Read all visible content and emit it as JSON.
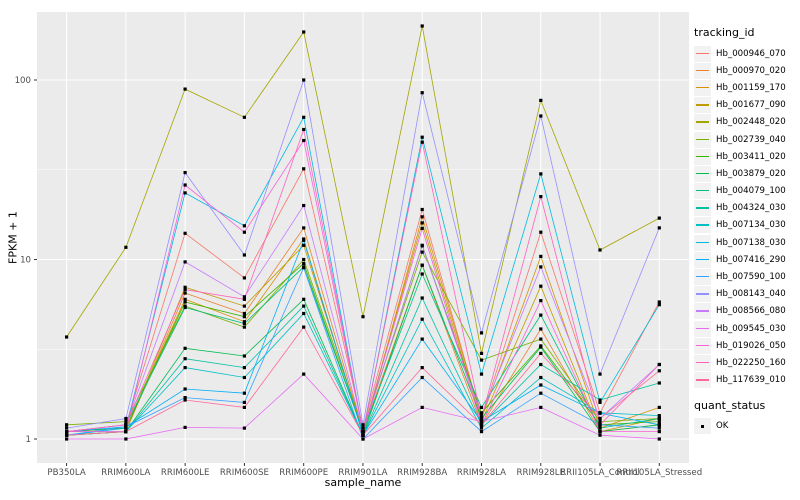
{
  "figure": {
    "background": "#FFFFFF",
    "panel_background": "#EBEBEB",
    "grid_color": "#FFFFFF",
    "axis_text_color": "#4D4D4D",
    "tick_color": "#333333",
    "marker_color": "#000000"
  },
  "axes": {
    "x_label": "sample_name",
    "y_label": "FPKM + 1",
    "y_tick_labels": [
      "1",
      "10",
      "100"
    ]
  },
  "legend": {
    "tracking_title": "tracking_id",
    "quant_title": "quant_status",
    "quant_items": [
      {
        "label": "OK",
        "marker": "black-square"
      }
    ]
  },
  "chart_data": {
    "type": "line",
    "title": "",
    "xlabel": "sample_name",
    "ylabel": "FPKM + 1",
    "log_y": true,
    "y_ticks": [
      1,
      10,
      100
    ],
    "y_minor_ticks": [
      3.162,
      31.62
    ],
    "ylim": [
      0.74,
      240
    ],
    "grid": true,
    "legend_position": "right",
    "marker": "square",
    "categories": [
      "PB350LA",
      "RRIM600LA",
      "RRIM600LE",
      "RRIM600SE",
      "RRIM600PE",
      "RRIM901LA",
      "RRIM928BA",
      "RRIM928LA",
      "RRIM928LE",
      "RRII105LA_Control",
      "RRII105LA_Stressed"
    ],
    "series": [
      {
        "name": "Hb_000946_070",
        "color": "#F8766D",
        "values": [
          1.1,
          1.2,
          14.0,
          7.9,
          32,
          1.15,
          19.0,
          1.3,
          14.2,
          1.4,
          5.8
        ]
      },
      {
        "name": "Hb_000970_020",
        "color": "#EA8331",
        "values": [
          1.05,
          1.1,
          6.5,
          5.0,
          15.0,
          1.1,
          9.3,
          1.2,
          4.1,
          1.1,
          1.2
        ]
      },
      {
        "name": "Hb_001159_170",
        "color": "#D89000",
        "values": [
          1.1,
          1.15,
          6.0,
          4.5,
          13.0,
          1.05,
          17.3,
          1.3,
          10.4,
          1.15,
          1.5
        ]
      },
      {
        "name": "Hb_001677_090",
        "color": "#C09B00",
        "values": [
          1.05,
          1.1,
          7.0,
          5.5,
          12.0,
          1.1,
          16.0,
          1.25,
          7.1,
          1.1,
          1.3
        ]
      },
      {
        "name": "Hb_002448_020",
        "color": "#A3A500",
        "values": [
          3.7,
          11.7,
          89,
          62,
          185,
          4.8,
          200,
          3.0,
          77,
          11.3,
          17.0
        ]
      },
      {
        "name": "Hb_002739_040",
        "color": "#7CAE00",
        "values": [
          1.2,
          1.25,
          5.5,
          4.2,
          10.0,
          1.15,
          11.0,
          2.75,
          3.6,
          1.25,
          1.3
        ]
      },
      {
        "name": "Hb_003411_020",
        "color": "#39B600",
        "values": [
          1.1,
          1.15,
          5.8,
          4.8,
          9.5,
          1.1,
          12.0,
          1.4,
          3.3,
          1.2,
          1.25
        ]
      },
      {
        "name": "Hb_003879_020",
        "color": "#00BB4E",
        "values": [
          1.05,
          1.1,
          3.2,
          2.9,
          6.0,
          1.05,
          9.3,
          1.3,
          3.25,
          1.1,
          1.2
        ]
      },
      {
        "name": "Hb_004079_100",
        "color": "#00BF7D",
        "values": [
          1.1,
          1.2,
          5.4,
          4.4,
          9.1,
          1.1,
          8.3,
          1.5,
          4.9,
          1.15,
          1.3
        ]
      },
      {
        "name": "Hb_004324_030",
        "color": "#00C1A3",
        "values": [
          1.05,
          1.1,
          2.8,
          2.5,
          5.5,
          1.05,
          6.1,
          1.2,
          2.6,
          1.65,
          2.05
        ]
      },
      {
        "name": "Hb_007134_030",
        "color": "#00BFC4",
        "values": [
          1.1,
          1.1,
          2.5,
          2.2,
          5.0,
          1.05,
          4.65,
          1.15,
          2.2,
          1.4,
          1.35
        ]
      },
      {
        "name": "Hb_007138_030",
        "color": "#00BAE0",
        "values": [
          1.05,
          1.15,
          23.5,
          15.4,
          62,
          1.1,
          48,
          2.3,
          30,
          1.6,
          5.6
        ]
      },
      {
        "name": "Hb_007416_290",
        "color": "#00B0F6",
        "values": [
          1.1,
          1.17,
          1.9,
          1.8,
          12.8,
          1.05,
          3.6,
          1.25,
          2.0,
          1.39,
          1.2
        ]
      },
      {
        "name": "Hb_007590_100",
        "color": "#35A2FF",
        "values": [
          1.05,
          1.17,
          1.7,
          1.6,
          9.0,
          1.0,
          2.2,
          1.1,
          1.8,
          1.2,
          1.15
        ]
      },
      {
        "name": "Hb_008143_040",
        "color": "#9590FF",
        "values": [
          1.15,
          1.3,
          30.5,
          10.6,
          100,
          1.2,
          85,
          3.9,
          63,
          2.3,
          15.0
        ]
      },
      {
        "name": "Hb_008566_080",
        "color": "#C77CFF",
        "values": [
          1.1,
          1.2,
          9.7,
          6.2,
          20.0,
          1.1,
          11.9,
          1.35,
          9.1,
          1.3,
          2.6
        ]
      },
      {
        "name": "Hb_009545_030",
        "color": "#E76BF3",
        "values": [
          1.0,
          1.0,
          1.16,
          1.15,
          2.3,
          1.0,
          1.5,
          1.25,
          1.5,
          1.05,
          1.0
        ]
      },
      {
        "name": "Hb_019026_050",
        "color": "#FA62DB",
        "values": [
          1.1,
          1.1,
          26.0,
          14.2,
          46,
          1.1,
          14.9,
          1.2,
          5.9,
          1.1,
          1.1
        ]
      },
      {
        "name": "Hb_022250_160",
        "color": "#FF62BC",
        "values": [
          1.1,
          1.2,
          6.8,
          6.0,
          53,
          1.1,
          45,
          1.3,
          22.4,
          1.2,
          2.6
        ]
      },
      {
        "name": "Hb_117639_010",
        "color": "#FF6A98",
        "values": [
          1.05,
          1.1,
          1.65,
          1.5,
          4.2,
          1.05,
          2.5,
          1.2,
          3.0,
          1.3,
          2.4
        ]
      }
    ]
  }
}
